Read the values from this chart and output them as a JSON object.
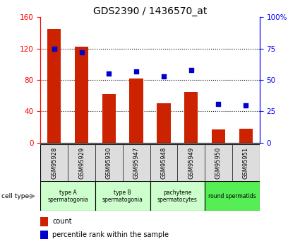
{
  "title": "GDS2390 / 1436570_at",
  "samples": [
    "GSM95928",
    "GSM95929",
    "GSM95930",
    "GSM95947",
    "GSM95948",
    "GSM95949",
    "GSM95950",
    "GSM95951"
  ],
  "counts": [
    145,
    122,
    62,
    82,
    50,
    65,
    17,
    18
  ],
  "percentiles": [
    75,
    72,
    55,
    57,
    53,
    58,
    31,
    30
  ],
  "cell_types": [
    {
      "label": "type A\nspermatogonia",
      "color": "#ccffcc",
      "start": 0,
      "end": 2
    },
    {
      "label": "type B\nspermatogonia",
      "color": "#ccffcc",
      "start": 2,
      "end": 4
    },
    {
      "label": "pachytene\nspermatocytes",
      "color": "#ccffcc",
      "start": 4,
      "end": 6
    },
    {
      "label": "round spermatids",
      "color": "#55ee55",
      "start": 6,
      "end": 8
    }
  ],
  "ylim_left": [
    0,
    160
  ],
  "ylim_right": [
    0,
    100
  ],
  "yticks_left": [
    0,
    40,
    80,
    120,
    160
  ],
  "yticks_right": [
    0,
    25,
    50,
    75,
    100
  ],
  "ytick_labels_right": [
    "0",
    "25",
    "50",
    "75",
    "100%"
  ],
  "bar_color": "#cc2200",
  "dot_color": "#0000cc",
  "bar_width": 0.5,
  "background_color": "#ffffff",
  "title_fontsize": 10,
  "tick_fontsize": 7.5,
  "legend_count_color": "#cc2200",
  "legend_dot_color": "#0000cc",
  "sample_box_color": "#dddddd",
  "gridline_yticks": [
    40,
    80,
    120
  ]
}
